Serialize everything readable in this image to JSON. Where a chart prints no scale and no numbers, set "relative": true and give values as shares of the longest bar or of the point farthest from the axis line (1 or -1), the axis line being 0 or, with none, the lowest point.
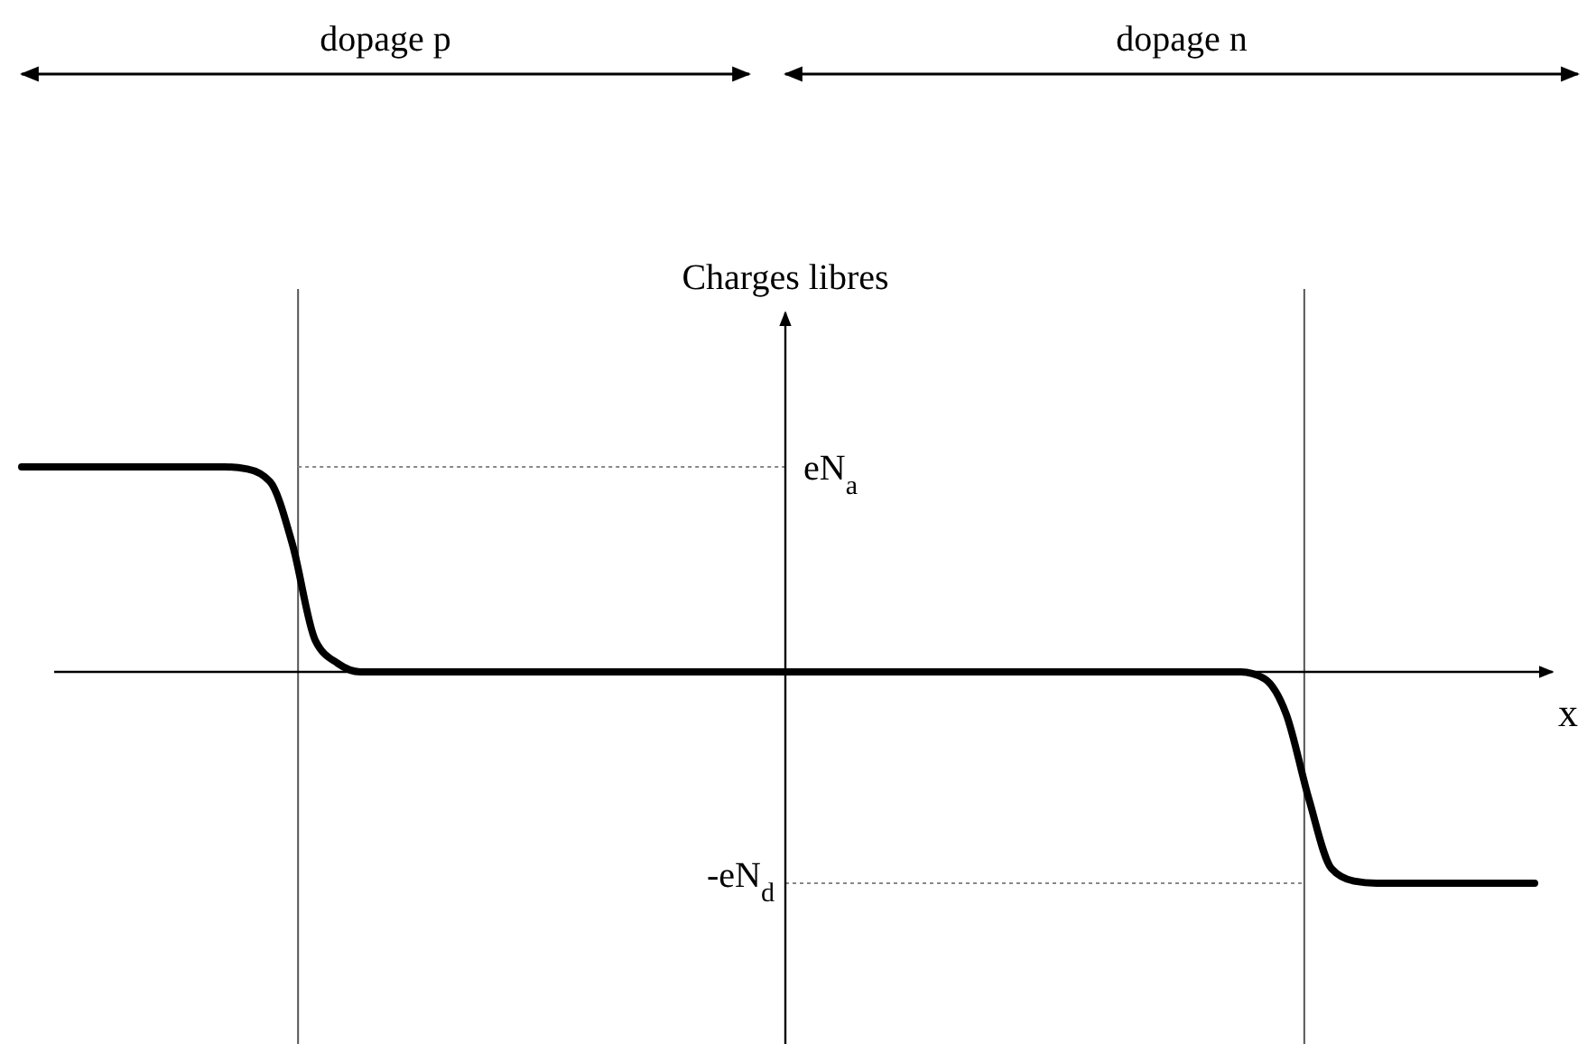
{
  "chart_data": {
    "type": "line",
    "relative": true,
    "xlabel": "x",
    "ylabel": "Charges libres",
    "annotations": [
      "dopage p",
      "dopage n"
    ],
    "categories": [
      null,
      null,
      null,
      null,
      null,
      null,
      null,
      null,
      null,
      null,
      null,
      null,
      null,
      null,
      null,
      null,
      null,
      null,
      null,
      null,
      null,
      null,
      null,
      null,
      null,
      null,
      null,
      null,
      null,
      null,
      null,
      null,
      null,
      null,
      null,
      null,
      null,
      null,
      null,
      null,
      null,
      null,
      null,
      null,
      null,
      null,
      null,
      null,
      null,
      null,
      null,
      null,
      null,
      null,
      null,
      null,
      null,
      null,
      null,
      null,
      null,
      null,
      null,
      null,
      null,
      null,
      null,
      null
    ],
    "series": [
      {
        "color": "#000000",
        "values": [
          0.97,
          0.97,
          0.97,
          0.97,
          0.97,
          0.97,
          0.97,
          0.97,
          0.97,
          0.97,
          0.96,
          0.9,
          0.6,
          0.15,
          0.04,
          0,
          0,
          0,
          0,
          0,
          0,
          0,
          0,
          0,
          0,
          0,
          0,
          0,
          0,
          0,
          0,
          0,
          0,
          0,
          0,
          0,
          0,
          0,
          0,
          0,
          0,
          0,
          0,
          0,
          0,
          0,
          0,
          0,
          0,
          0,
          0,
          0,
          0,
          0,
          0,
          -0.03,
          -0.2,
          -0.6,
          -0.93,
          -0.99,
          -1,
          -1,
          -1,
          -1,
          -1,
          -1,
          -1,
          -1
        ]
      }
    ],
    "ref_lines": [
      {
        "axis": "y",
        "value": 0.97,
        "label": "eN$_{a}$",
        "color": "#888888",
        "line_style": "dotted"
      },
      {
        "axis": "y",
        "value": -1,
        "label": "-eN$_{d}$",
        "color": "#888888",
        "line_style": "dotted"
      }
    ],
    "marker": "none",
    "line_style": "solid"
  }
}
